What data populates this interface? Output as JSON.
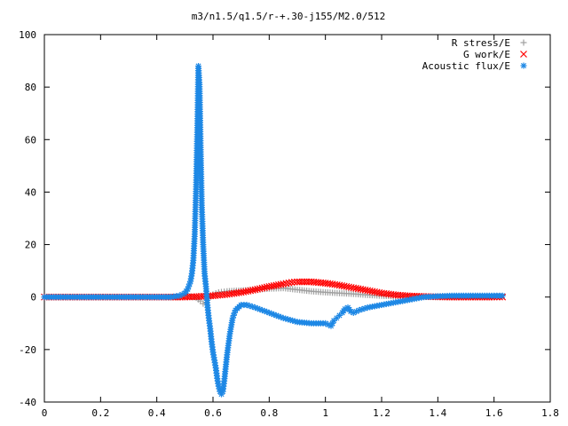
{
  "chart_data": {
    "type": "scatter",
    "title": "m3/n1.5/q1.5/r-+.30-j155/M2.0/512",
    "xlabel": "",
    "ylabel": "",
    "xlim": [
      0,
      1.8
    ],
    "ylim": [
      -40,
      100
    ],
    "x_ticks": [
      "0",
      "0.2",
      "0.4",
      "0.6",
      "0.8",
      "1",
      "1.2",
      "1.4",
      "1.6",
      "1.8"
    ],
    "y_ticks": [
      "-40",
      "-20",
      "0",
      "20",
      "40",
      "60",
      "80",
      "100"
    ],
    "grid": false,
    "legend_position": "top-right",
    "series": [
      {
        "name": "R stress/E",
        "marker": "+",
        "color": "#a0a0a0",
        "points": [
          [
            0.0,
            0
          ],
          [
            0.1,
            0
          ],
          [
            0.2,
            0
          ],
          [
            0.3,
            0
          ],
          [
            0.4,
            0
          ],
          [
            0.48,
            0
          ],
          [
            0.5,
            0.5
          ],
          [
            0.52,
            0.2
          ],
          [
            0.54,
            -0.3
          ],
          [
            0.555,
            -1.5
          ],
          [
            0.565,
            -2.5
          ],
          [
            0.575,
            -2
          ],
          [
            0.585,
            -0.5
          ],
          [
            0.6,
            1
          ],
          [
            0.62,
            1.8
          ],
          [
            0.65,
            2.2
          ],
          [
            0.7,
            2.5
          ],
          [
            0.75,
            2.8
          ],
          [
            0.8,
            3.2
          ],
          [
            0.85,
            3.4
          ],
          [
            0.9,
            2.8
          ],
          [
            0.95,
            2.2
          ],
          [
            1.0,
            1.8
          ],
          [
            1.05,
            1.5
          ],
          [
            1.1,
            1.2
          ],
          [
            1.15,
            0.8
          ],
          [
            1.2,
            0.5
          ],
          [
            1.25,
            0.3
          ],
          [
            1.3,
            0.2
          ],
          [
            1.35,
            0.1
          ],
          [
            1.4,
            0
          ],
          [
            1.45,
            0
          ],
          [
            1.5,
            0
          ],
          [
            1.55,
            0
          ],
          [
            1.6,
            0
          ]
        ]
      },
      {
        "name": "G work/E",
        "marker": "x",
        "color": "#ff0000",
        "points": [
          [
            0.0,
            0
          ],
          [
            0.1,
            0
          ],
          [
            0.2,
            0
          ],
          [
            0.3,
            0
          ],
          [
            0.4,
            0
          ],
          [
            0.5,
            0
          ],
          [
            0.55,
            0.2
          ],
          [
            0.6,
            0.5
          ],
          [
            0.65,
            1
          ],
          [
            0.7,
            1.8
          ],
          [
            0.75,
            2.8
          ],
          [
            0.8,
            4
          ],
          [
            0.85,
            5
          ],
          [
            0.88,
            5.6
          ],
          [
            0.9,
            5.8
          ],
          [
            0.95,
            5.8
          ],
          [
            1.0,
            5.3
          ],
          [
            1.05,
            4.5
          ],
          [
            1.1,
            3.5
          ],
          [
            1.15,
            2.5
          ],
          [
            1.2,
            1.5
          ],
          [
            1.25,
            0.8
          ],
          [
            1.3,
            0.4
          ],
          [
            1.35,
            0.2
          ],
          [
            1.4,
            0.1
          ],
          [
            1.45,
            0
          ],
          [
            1.5,
            0
          ],
          [
            1.55,
            0
          ],
          [
            1.6,
            0
          ],
          [
            1.63,
            0
          ]
        ]
      },
      {
        "name": "Acoustic flux/E",
        "marker": "*",
        "color": "#1e88e5",
        "points": [
          [
            0.0,
            0
          ],
          [
            0.1,
            0
          ],
          [
            0.2,
            0
          ],
          [
            0.3,
            0
          ],
          [
            0.4,
            0
          ],
          [
            0.45,
            0
          ],
          [
            0.48,
            0.5
          ],
          [
            0.5,
            1.5
          ],
          [
            0.51,
            3
          ],
          [
            0.52,
            6
          ],
          [
            0.525,
            9
          ],
          [
            0.53,
            14
          ],
          [
            0.535,
            24
          ],
          [
            0.54,
            42
          ],
          [
            0.545,
            68
          ],
          [
            0.548,
            88
          ],
          [
            0.552,
            81
          ],
          [
            0.556,
            57
          ],
          [
            0.56,
            35
          ],
          [
            0.565,
            20
          ],
          [
            0.57,
            9
          ],
          [
            0.575,
            4
          ],
          [
            0.58,
            -3
          ],
          [
            0.585,
            -8
          ],
          [
            0.59,
            -12
          ],
          [
            0.595,
            -17
          ],
          [
            0.6,
            -21
          ],
          [
            0.605,
            -24
          ],
          [
            0.61,
            -27
          ],
          [
            0.615,
            -31
          ],
          [
            0.62,
            -34
          ],
          [
            0.625,
            -36
          ],
          [
            0.63,
            -37
          ],
          [
            0.635,
            -36
          ],
          [
            0.64,
            -32
          ],
          [
            0.65,
            -22
          ],
          [
            0.66,
            -14
          ],
          [
            0.67,
            -8
          ],
          [
            0.68,
            -5
          ],
          [
            0.7,
            -3
          ],
          [
            0.72,
            -3
          ],
          [
            0.75,
            -4
          ],
          [
            0.8,
            -6
          ],
          [
            0.85,
            -8
          ],
          [
            0.9,
            -9.5
          ],
          [
            0.95,
            -10
          ],
          [
            1.0,
            -10
          ],
          [
            1.02,
            -11
          ],
          [
            1.03,
            -9
          ],
          [
            1.04,
            -8
          ],
          [
            1.05,
            -7
          ],
          [
            1.06,
            -6
          ],
          [
            1.07,
            -4.5
          ],
          [
            1.08,
            -4
          ],
          [
            1.09,
            -5.5
          ],
          [
            1.1,
            -6
          ],
          [
            1.12,
            -5
          ],
          [
            1.15,
            -4
          ],
          [
            1.2,
            -3
          ],
          [
            1.25,
            -2
          ],
          [
            1.3,
            -1
          ],
          [
            1.35,
            0
          ],
          [
            1.4,
            0.3
          ],
          [
            1.45,
            0.5
          ],
          [
            1.5,
            0.5
          ],
          [
            1.55,
            0.5
          ],
          [
            1.6,
            0.5
          ],
          [
            1.63,
            0.5
          ]
        ]
      }
    ]
  }
}
